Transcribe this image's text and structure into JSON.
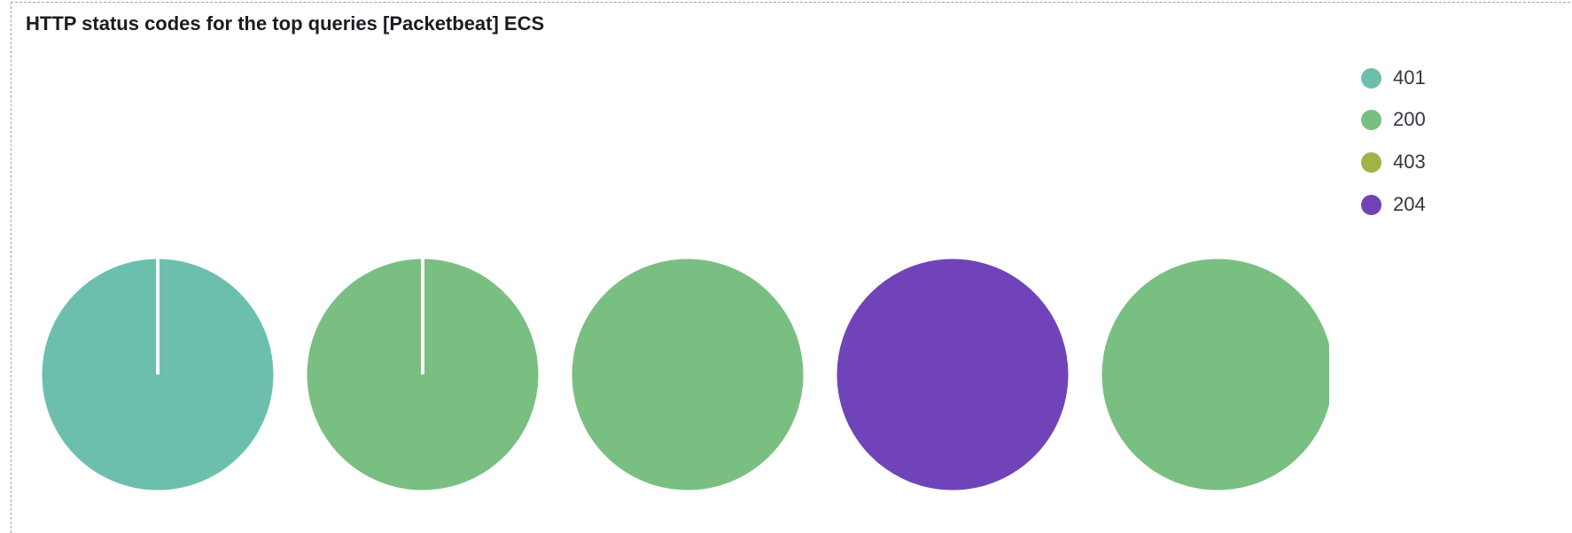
{
  "panel": {
    "title": "HTTP status codes for the top queries [Packetbeat] ECS"
  },
  "legend": {
    "items": [
      {
        "label": "401",
        "color": "#6dbfad"
      },
      {
        "label": "200",
        "color": "#7abf82"
      },
      {
        "label": "403",
        "color": "#a0b345"
      },
      {
        "label": "204",
        "color": "#7044b8"
      }
    ]
  },
  "chart_data": {
    "type": "pie",
    "title": "HTTP status codes for the top queries [Packetbeat] ECS",
    "legend_position": "top-right",
    "pies": [
      {
        "slices": [
          {
            "label": "401",
            "value": 100
          }
        ]
      },
      {
        "slices": [
          {
            "label": "200",
            "value": 100
          }
        ]
      },
      {
        "slices": [
          {
            "label": "200",
            "value": 100
          }
        ]
      },
      {
        "slices": [
          {
            "label": "204",
            "value": 100
          }
        ]
      },
      {
        "slices": [
          {
            "label": "200",
            "value": 100
          }
        ]
      }
    ]
  }
}
